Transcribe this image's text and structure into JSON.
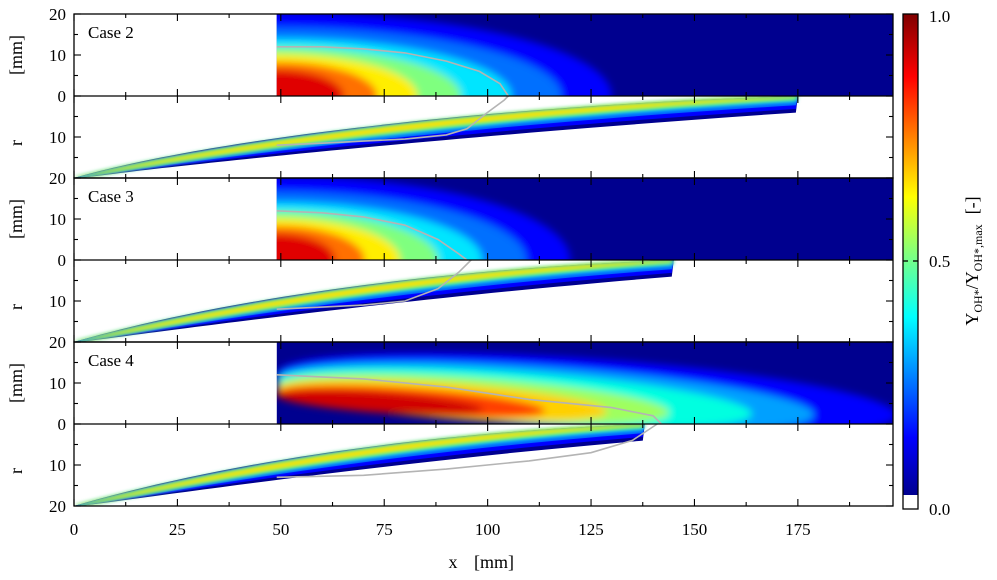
{
  "chart_data": {
    "type": "heatmap",
    "title": "",
    "colormap": "jet",
    "x_axis": {
      "label": "x",
      "unit": "[mm]",
      "range": [
        0,
        198
      ],
      "ticks": [
        0,
        25,
        50,
        75,
        100,
        125,
        150,
        175
      ],
      "tick_labels": [
        "0",
        "25",
        "50",
        "75",
        "100",
        "125",
        "150",
        "175"
      ]
    },
    "r_axis": {
      "label": "r",
      "unit": "[mm]",
      "range": [
        0,
        20
      ],
      "ticks": [
        0,
        10,
        20
      ],
      "tick_labels": [
        "0",
        "10",
        "20"
      ]
    },
    "colorbar": {
      "label_main": "Y",
      "label_sub1": "OH*",
      "label_sep": "/Y",
      "label_sub2": "OH*,max",
      "unit": "[-]",
      "range": [
        0.0,
        1.0
      ],
      "ticks": [
        "0.0",
        "0.5",
        "1.0"
      ]
    },
    "cases": [
      {
        "label": "Case 2",
        "experiment": {
          "x_start": 49,
          "x_end": 198,
          "peak_x": 55,
          "peak_r": 5,
          "decay": "radial-centerline",
          "contour": [
            [
              49,
              12
            ],
            [
              60,
              12
            ],
            [
              70,
              11.5
            ],
            [
              80,
              10.5
            ],
            [
              90,
              8.5
            ],
            [
              98,
              6
            ],
            [
              103,
              3
            ],
            [
              105,
              0
            ]
          ]
        },
        "simulation": {
          "flame_tip_x": 175,
          "x_end": 198,
          "lower_contour": [
            [
              49,
              12
            ],
            [
              60,
              11.5
            ],
            [
              70,
              11
            ],
            [
              80,
              10.5
            ],
            [
              90,
              9.5
            ],
            [
              95,
              8
            ],
            [
              100,
              4
            ],
            [
              104,
              1
            ],
            [
              105,
              0
            ]
          ]
        }
      },
      {
        "label": "Case 3",
        "experiment": {
          "x_start": 49,
          "x_end": 198,
          "peak_x": 55,
          "peak_r": 5,
          "decay": "radial-centerline",
          "contour": [
            [
              49,
              12
            ],
            [
              60,
              11.5
            ],
            [
              70,
              10.5
            ],
            [
              80,
              8.5
            ],
            [
              88,
              5
            ],
            [
              93,
              1.5
            ],
            [
              95,
              0
            ]
          ]
        },
        "simulation": {
          "flame_tip_x": 145,
          "x_end": 198,
          "lower_contour": [
            [
              49,
              12
            ],
            [
              60,
              11.5
            ],
            [
              70,
              11
            ],
            [
              80,
              10
            ],
            [
              88,
              7
            ],
            [
              93,
              3
            ],
            [
              96,
              0
            ]
          ]
        }
      },
      {
        "label": "Case 4",
        "experiment": {
          "x_start": 49,
          "x_end": 198,
          "peak_x": 75,
          "peak_r": 8,
          "decay": "lifted-band",
          "contour": [
            [
              49,
              12
            ],
            [
              70,
              11
            ],
            [
              90,
              9
            ],
            [
              110,
              6
            ],
            [
              130,
              4
            ],
            [
              140,
              2
            ],
            [
              142,
              0
            ]
          ]
        },
        "simulation": {
          "flame_tip_x": 138,
          "x_end": 198,
          "lower_contour": [
            [
              49,
              13
            ],
            [
              70,
              12.5
            ],
            [
              90,
              11
            ],
            [
              110,
              9
            ],
            [
              125,
              7
            ],
            [
              135,
              4
            ],
            [
              141,
              0
            ]
          ]
        }
      }
    ]
  }
}
